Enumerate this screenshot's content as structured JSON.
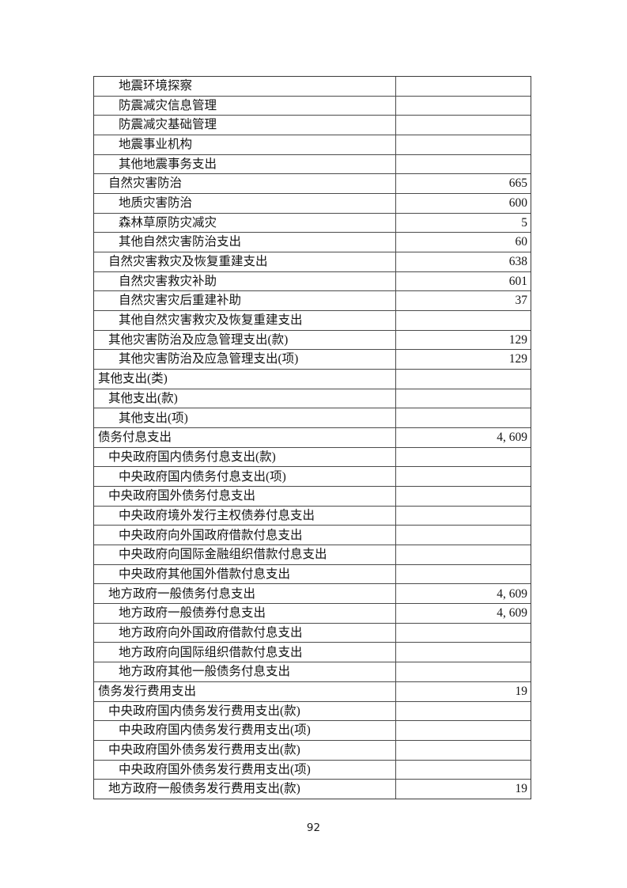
{
  "page": {
    "number": "92"
  },
  "colors": {
    "background": "#ffffff",
    "border": "#3a3a3a",
    "inner_border": "#4b4b4b",
    "text": "#141414"
  },
  "table": {
    "columns": [
      "item",
      "amount"
    ],
    "rows": [
      {
        "label": "地震环境探察",
        "value": "",
        "indent": 2
      },
      {
        "label": "防震减灾信息管理",
        "value": "",
        "indent": 2
      },
      {
        "label": "防震减灾基础管理",
        "value": "",
        "indent": 2
      },
      {
        "label": "地震事业机构",
        "value": "",
        "indent": 2
      },
      {
        "label": "其他地震事务支出",
        "value": "",
        "indent": 2
      },
      {
        "label": "自然灾害防治",
        "value": "665",
        "indent": 1
      },
      {
        "label": "地质灾害防治",
        "value": "600",
        "indent": 2
      },
      {
        "label": "森林草原防灾减灾",
        "value": "5",
        "indent": 2
      },
      {
        "label": "其他自然灾害防治支出",
        "value": "60",
        "indent": 2
      },
      {
        "label": "自然灾害救灾及恢复重建支出",
        "value": "638",
        "indent": 1
      },
      {
        "label": "自然灾害救灾补助",
        "value": "601",
        "indent": 2
      },
      {
        "label": "自然灾害灾后重建补助",
        "value": "37",
        "indent": 2
      },
      {
        "label": "其他自然灾害救灾及恢复重建支出",
        "value": "",
        "indent": 2
      },
      {
        "label": "其他灾害防治及应急管理支出(款)",
        "value": "129",
        "indent": 1
      },
      {
        "label": "其他灾害防治及应急管理支出(项)",
        "value": "129",
        "indent": 2
      },
      {
        "label": "其他支出(类)",
        "value": "",
        "indent": 0
      },
      {
        "label": "其他支出(款)",
        "value": "",
        "indent": 1
      },
      {
        "label": "其他支出(项)",
        "value": "",
        "indent": 2
      },
      {
        "label": "债务付息支出",
        "value": "4, 609",
        "indent": 0
      },
      {
        "label": "中央政府国内债务付息支出(款)",
        "value": "",
        "indent": 1
      },
      {
        "label": "中央政府国内债务付息支出(项)",
        "value": "",
        "indent": 2
      },
      {
        "label": "中央政府国外债务付息支出",
        "value": "",
        "indent": 1
      },
      {
        "label": "中央政府境外发行主权债券付息支出",
        "value": "",
        "indent": 2
      },
      {
        "label": "中央政府向外国政府借款付息支出",
        "value": "",
        "indent": 2
      },
      {
        "label": "中央政府向国际金融组织借款付息支出",
        "value": "",
        "indent": 2
      },
      {
        "label": "中央政府其他国外借款付息支出",
        "value": "",
        "indent": 2
      },
      {
        "label": "地方政府一般债务付息支出",
        "value": "4, 609",
        "indent": 1
      },
      {
        "label": "地方政府一般债券付息支出",
        "value": "4, 609",
        "indent": 2
      },
      {
        "label": "地方政府向外国政府借款付息支出",
        "value": "",
        "indent": 2
      },
      {
        "label": "地方政府向国际组织借款付息支出",
        "value": "",
        "indent": 2
      },
      {
        "label": "地方政府其他一般债务付息支出",
        "value": "",
        "indent": 2
      },
      {
        "label": "债务发行费用支出",
        "value": "19",
        "indent": 0
      },
      {
        "label": "中央政府国内债务发行费用支出(款)",
        "value": "",
        "indent": 1
      },
      {
        "label": "中央政府国内债务发行费用支出(项)",
        "value": "",
        "indent": 2
      },
      {
        "label": "中央政府国外债务发行费用支出(款)",
        "value": "",
        "indent": 1
      },
      {
        "label": "中央政府国外债务发行费用支出(项)",
        "value": "",
        "indent": 2
      },
      {
        "label": "地方政府一般债务发行费用支出(款)",
        "value": "19",
        "indent": 1
      }
    ]
  }
}
